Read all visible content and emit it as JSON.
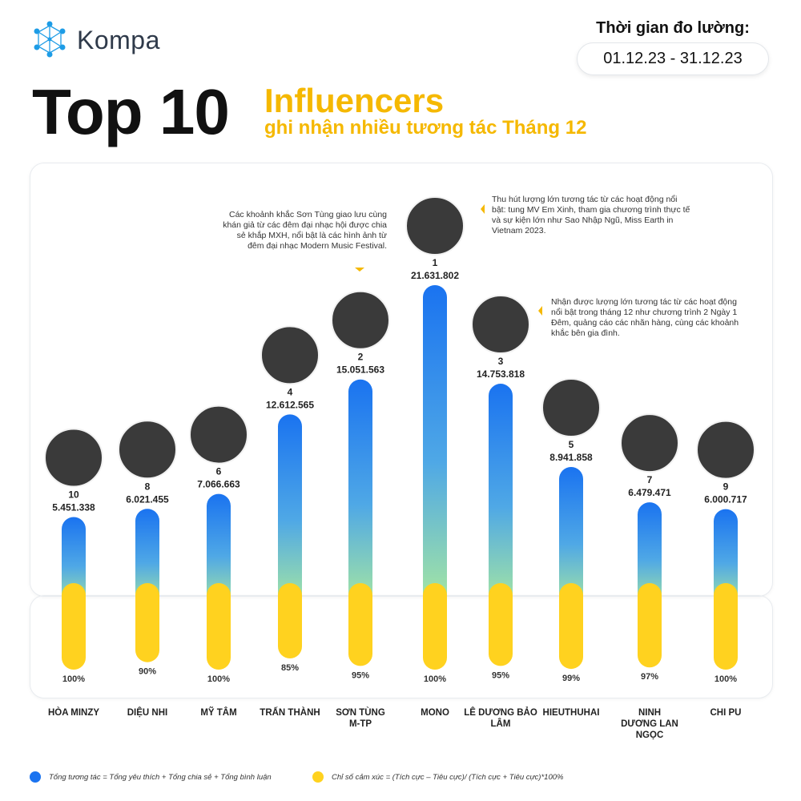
{
  "brand": {
    "name": "Kompa",
    "logo_icon": "kompa-molecule-logo",
    "color": "#1d9ce6"
  },
  "period": {
    "label": "Thời gian đo lường:",
    "range": "01.12.23 - 31.12.23"
  },
  "title": {
    "main": "Top 10",
    "sub1": "Influencers",
    "sub2": "ghi nhận nhiều tương tác Tháng 12"
  },
  "notes": {
    "n1": "Thu hút lượng lớn tương tác từ các hoạt động nổi bật: tung MV Em Xinh, tham gia chương trình thực tế và sự kiện lớn như Sao Nhập Ngũ, Miss Earth in Vietnam 2023.",
    "n2": "Các khoảnh khắc Sơn Tùng giao lưu cùng khán giả từ các đêm đại nhạc hội được chia sẻ khắp MXH, nổi bật là các hình ảnh từ đêm đại nhạc Modern Music Festival.",
    "n3": "Nhận được lượng lớn tương tác từ các hoạt động nổi bật trong tháng 12 như chương trình 2 Ngày 1 Đêm, quảng cáo các nhãn hàng, cùng các khoảnh khắc bên gia đình."
  },
  "legend": {
    "interactions": "Tổng tương tác = Tổng yêu thích + Tổng chia sẻ + Tổng bình luận",
    "sentiment": "Chỉ số cảm xúc = (Tích cực – Tiêu cực)/ (Tích cực + Tiêu cực)*100%"
  },
  "colors": {
    "blue": "#1a73f0",
    "green": "#a8e8a0",
    "yellow": "#ffd21f",
    "accent": "#f5b800"
  },
  "chart_data": {
    "type": "bar",
    "categories": [
      "HÒA MINZY",
      "DIỆU NHI",
      "MỸ TÂM",
      "TRẤN THÀNH",
      "SƠN TÙNG M-TP",
      "MONO",
      "LÊ DƯƠNG BẢO LÂM",
      "HIEUTHUHAI",
      "NINH DƯƠNG LAN NGỌC",
      "CHI PU"
    ],
    "category_lines": [
      [
        "HÒA MINZY"
      ],
      [
        "DIỆU NHI"
      ],
      [
        "MỸ TÂM"
      ],
      [
        "TRẤN THÀNH"
      ],
      [
        "SƠN TÙNG",
        "M-TP"
      ],
      [
        "MONO"
      ],
      [
        "LÊ DƯƠNG BẢO",
        "LÂM"
      ],
      [
        "HIEUTHUHAI"
      ],
      [
        "NINH",
        "DƯƠNG LAN",
        "NGỌC"
      ],
      [
        "CHI PU"
      ]
    ],
    "ranks": [
      "10",
      "8",
      "6",
      "4",
      "2",
      "1",
      "3",
      "5",
      "7",
      "9"
    ],
    "series": [
      {
        "values": [
          5451338,
          6021455,
          7066663,
          12612565,
          15051563,
          21631802,
          14753818,
          8941858,
          6479471,
          6000717
        ],
        "labels": [
          "5.451.338",
          "6.021.455",
          "7.066.663",
          "12.612.565",
          "15.051.563",
          "21.631.802",
          "14.753.818",
          "8.941.858",
          "6.479.471",
          "6.000.717"
        ]
      },
      {
        "values": [
          100,
          90,
          100,
          85,
          95,
          100,
          95,
          99,
          97,
          100
        ],
        "labels": [
          "100%",
          "90%",
          "100%",
          "85%",
          "95%",
          "100%",
          "95%",
          "99%",
          "97%",
          "100%"
        ]
      }
    ]
  }
}
